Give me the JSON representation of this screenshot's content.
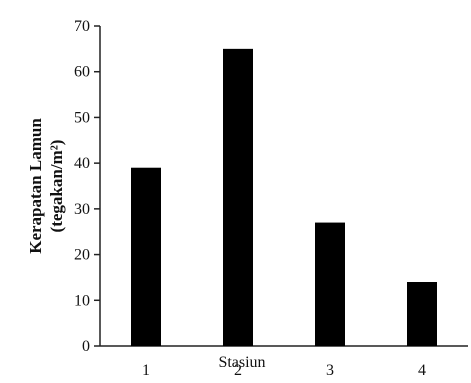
{
  "chart_data": {
    "type": "bar",
    "categories": [
      "1",
      "2",
      "3",
      "4"
    ],
    "values": [
      39,
      65,
      27,
      14
    ],
    "ylabel_lines": [
      "Kerapatan Lamun",
      "(tegakan/m²)"
    ],
    "xlabel": "Stasiun",
    "ylim": [
      0,
      70
    ],
    "yticks": [
      0,
      10,
      20,
      30,
      40,
      50,
      60,
      70
    ],
    "grid": false,
    "bar_color": "#000000"
  }
}
